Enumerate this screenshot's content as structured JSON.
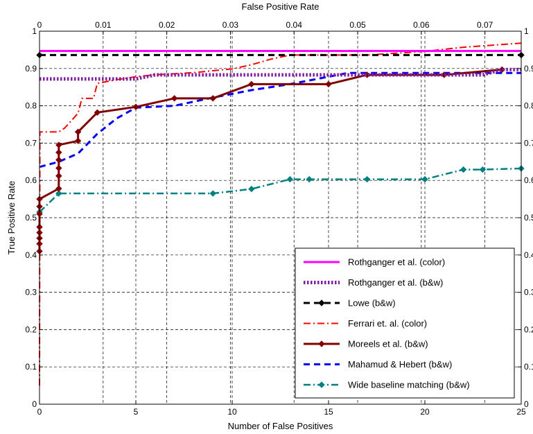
{
  "chart_data": {
    "type": "line",
    "top_axis": {
      "label": "False Positive Rate",
      "tick_values": [
        0,
        0.01,
        0.02,
        0.03,
        0.04,
        0.05,
        0.06,
        0.07
      ],
      "tick_labels": [
        "0",
        "0.01",
        "0.02",
        "0.03",
        "0.04",
        "0.05",
        "0.06",
        "0.07"
      ],
      "range": [
        0,
        0.0757
      ]
    },
    "xlabel": "Number of False Positives",
    "ylabel": "True Positive Rate",
    "xlim": [
      0,
      25
    ],
    "ylim": [
      0,
      1
    ],
    "x_tick_labels": [
      "0",
      "5",
      "10",
      "15",
      "20",
      "25"
    ],
    "y_tick_labels": [
      "0",
      "0.1",
      "0.2",
      "0.3",
      "0.4",
      "0.5",
      "0.6",
      "0.7",
      "0.8",
      "0.9",
      "1"
    ],
    "grid": true,
    "legend_position": "bottom-right",
    "series": [
      {
        "name": "Rothganger et al. (color)",
        "color": "#ff00ff",
        "style": "solid",
        "width": 3,
        "marker": "none",
        "points": [
          [
            0,
            0.947
          ],
          [
            25,
            0.947
          ]
        ]
      },
      {
        "name": "Rothganger et al. (b&w)",
        "color": "#7f1f9f",
        "style": "dotted",
        "width": 5,
        "marker": "none",
        "points": [
          [
            0,
            0.872
          ],
          [
            5,
            0.872
          ],
          [
            6,
            0.883
          ],
          [
            20,
            0.883
          ],
          [
            23,
            0.883
          ],
          [
            24,
            0.897
          ],
          [
            25,
            0.897
          ]
        ]
      },
      {
        "name": "Lowe (b&w)",
        "color": "#000000",
        "style": "dashed",
        "width": 3,
        "marker": "diamond",
        "points": [
          [
            0,
            0.936
          ],
          [
            25,
            0.936
          ]
        ]
      },
      {
        "name": "Ferrari et. al. (color)",
        "color": "#ff0000",
        "style": "dashdot",
        "width": 2,
        "marker": "none",
        "points": [
          [
            0,
            0.05
          ],
          [
            0.02,
            0.73
          ],
          [
            1,
            0.73
          ],
          [
            1.3,
            0.74
          ],
          [
            2,
            0.78
          ],
          [
            2.2,
            0.82
          ],
          [
            2.8,
            0.82
          ],
          [
            3,
            0.86
          ],
          [
            4,
            0.87
          ],
          [
            5,
            0.878
          ],
          [
            6,
            0.883
          ],
          [
            8,
            0.889
          ],
          [
            10,
            0.899
          ],
          [
            11,
            0.91
          ],
          [
            12,
            0.925
          ],
          [
            13,
            0.936
          ],
          [
            17,
            0.936
          ],
          [
            20,
            0.946
          ],
          [
            22,
            0.957
          ],
          [
            25,
            0.968
          ]
        ]
      },
      {
        "name": "Moreels et al. (b&w)",
        "color": "#800000",
        "style": "solid",
        "width": 3,
        "marker": "diamond",
        "points": [
          [
            0,
            0.41
          ],
          [
            0,
            0.43
          ],
          [
            0,
            0.445
          ],
          [
            0,
            0.46
          ],
          [
            0,
            0.475
          ],
          [
            0,
            0.51
          ],
          [
            0,
            0.53
          ],
          [
            0,
            0.55
          ],
          [
            1,
            0.578
          ],
          [
            1,
            0.612
          ],
          [
            1,
            0.633
          ],
          [
            1,
            0.655
          ],
          [
            1,
            0.675
          ],
          [
            1,
            0.695
          ],
          [
            2,
            0.706
          ],
          [
            2,
            0.73
          ],
          [
            3,
            0.782
          ],
          [
            5,
            0.797
          ],
          [
            7,
            0.82
          ],
          [
            9,
            0.82
          ],
          [
            11,
            0.858
          ],
          [
            15,
            0.858
          ],
          [
            17,
            0.883
          ],
          [
            21,
            0.883
          ],
          [
            24,
            0.897
          ]
        ]
      },
      {
        "name": "Mahamud & Hebert (b&w)",
        "color": "#0000ff",
        "style": "dashed",
        "width": 3,
        "marker": "none",
        "points": [
          [
            0,
            0.636
          ],
          [
            1,
            0.65
          ],
          [
            2,
            0.672
          ],
          [
            3,
            0.725
          ],
          [
            4,
            0.766
          ],
          [
            5,
            0.795
          ],
          [
            7,
            0.8
          ],
          [
            9,
            0.822
          ],
          [
            11,
            0.842
          ],
          [
            13,
            0.858
          ],
          [
            15,
            0.878
          ],
          [
            16,
            0.888
          ],
          [
            25,
            0.888
          ]
        ]
      },
      {
        "name": "Wide baseline matching (b&w)",
        "color": "#008080",
        "style": "dashdot",
        "width": 2.5,
        "marker": "diamond",
        "points": [
          [
            0,
            0.515
          ],
          [
            1,
            0.565
          ],
          [
            9,
            0.565
          ],
          [
            11,
            0.577
          ],
          [
            13,
            0.603
          ],
          [
            14,
            0.603
          ],
          [
            17,
            0.603
          ],
          [
            20,
            0.603
          ],
          [
            22,
            0.629
          ],
          [
            23,
            0.629
          ],
          [
            25,
            0.632
          ]
        ]
      }
    ]
  }
}
